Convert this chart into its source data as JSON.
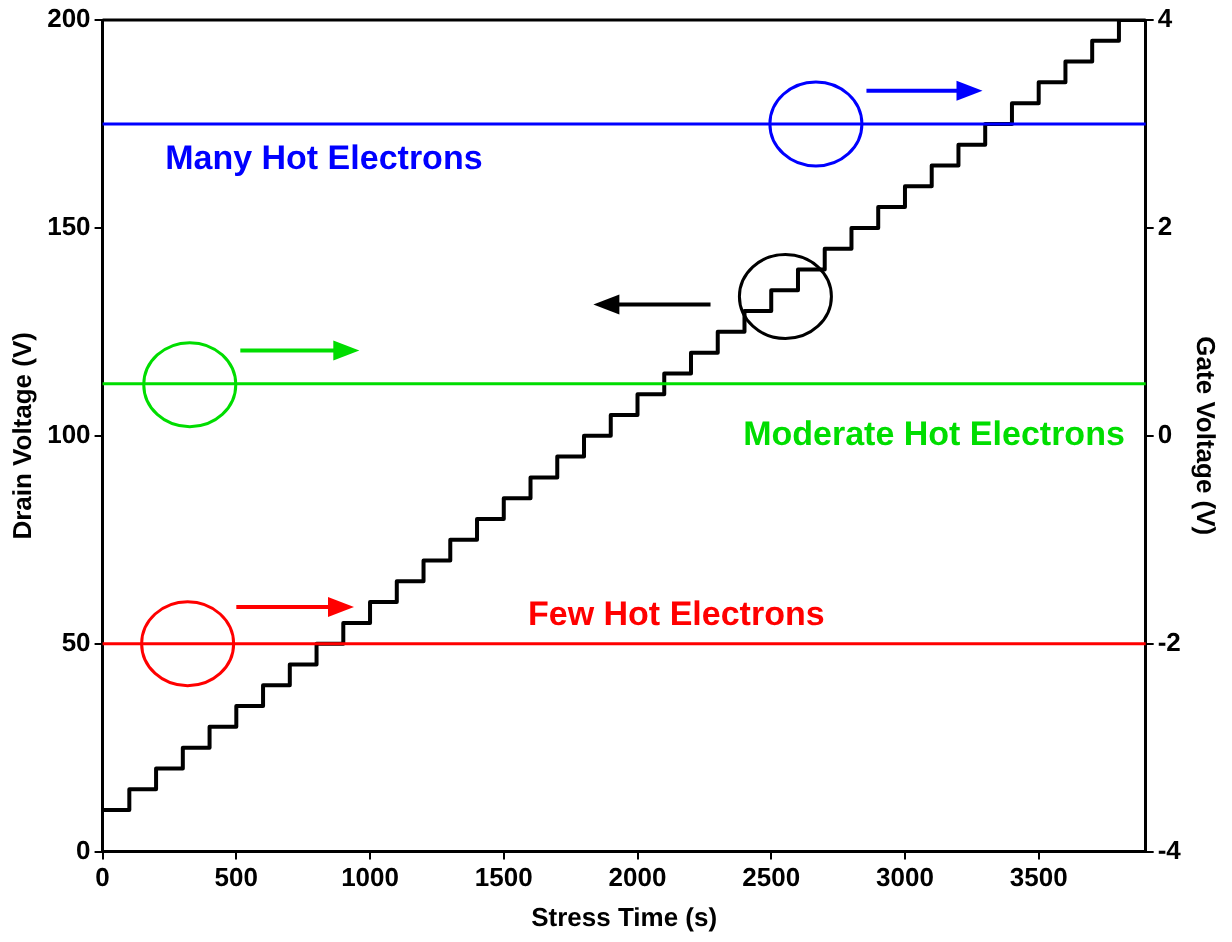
{
  "chart_data": {
    "type": "step",
    "xlabel": "Stress Time (s)",
    "ylabel": "Drain Voltage (V)",
    "y2label": "Gate Voltage (V)",
    "x": [
      0,
      100,
      200,
      300,
      400,
      500,
      600,
      700,
      800,
      900,
      1000,
      1100,
      1200,
      1300,
      1400,
      1500,
      1600,
      1700,
      1800,
      1900,
      2000,
      2100,
      2200,
      2300,
      2400,
      2500,
      2600,
      2700,
      2800,
      2900,
      3000,
      3100,
      3200,
      3300,
      3400,
      3500,
      3600,
      3700,
      3800,
      3900
    ],
    "series": [
      {
        "color": "#000000",
        "values": [
          10,
          15,
          20,
          25,
          30,
          35,
          40,
          45,
          50,
          55,
          60,
          65,
          70,
          75,
          80,
          85,
          90,
          95,
          100,
          105,
          110,
          115,
          120,
          125,
          130,
          135,
          140,
          145,
          150,
          155,
          160,
          165,
          170,
          175,
          180,
          185,
          190,
          195,
          200,
          200
        ]
      }
    ],
    "xlim": [
      0,
      3900
    ],
    "xticks": [
      0,
      500,
      1000,
      1500,
      2000,
      2500,
      3000,
      3500
    ],
    "ylim": [
      0,
      200
    ],
    "yticks": [
      0,
      50,
      100,
      150,
      200
    ],
    "y2lim": [
      -4,
      4
    ],
    "y2ticks": [
      -4,
      -2,
      0,
      2,
      4
    ],
    "ref_lines": [
      {
        "axis": "y2",
        "value": 3,
        "label": "Many Hot Electrons",
        "color": "#0000ff"
      },
      {
        "axis": "y2",
        "value": 0.5,
        "label": "Moderate Hot Electrons",
        "color": "#00dd00"
      },
      {
        "axis": "y2",
        "value": -2,
        "label": "Few Hot Electrons",
        "color": "#ff0000"
      }
    ],
    "grid": false,
    "legend": false,
    "marker": "none",
    "line_style": "solid"
  }
}
